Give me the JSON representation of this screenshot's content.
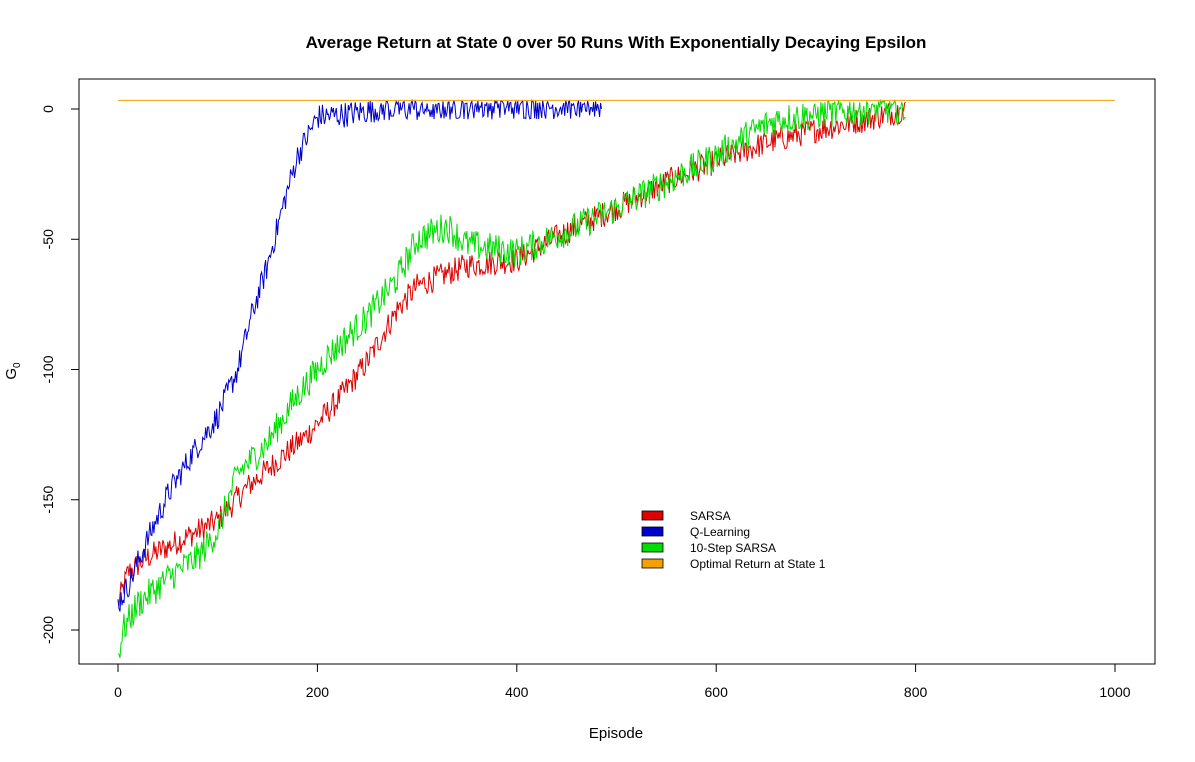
{
  "chart_data": {
    "type": "line",
    "title": "Average Return at State 0 over 50 Runs With Exponentially Decaying Epsilon",
    "xlabel": "Episode",
    "ylabel": "G",
    "ylabel_subscript": "0",
    "xlim": [
      0,
      1000
    ],
    "ylim": [
      -212,
      3
    ],
    "x_ticks": [
      0,
      200,
      400,
      600,
      800,
      1000
    ],
    "x_tick_labels": [
      "0",
      "200",
      "400",
      "600",
      "800",
      "1000"
    ],
    "y_ticks": [
      0,
      -50,
      -100,
      -150,
      -200
    ],
    "y_tick_labels": [
      "0",
      "-50",
      "-100",
      "-150",
      "-200"
    ],
    "grid": false,
    "legend_placement": "bottom-center",
    "series": [
      {
        "name": "SARSA",
        "color": "#dd0000",
        "noise": 5,
        "x": [
          0,
          10,
          30,
          60,
          100,
          130,
          160,
          190,
          220,
          250,
          280,
          300,
          350,
          400,
          450,
          500,
          550,
          600,
          650,
          700,
          750,
          790
        ],
        "values": [
          -190,
          -178,
          -172,
          -166,
          -158,
          -145,
          -135,
          -125,
          -112,
          -97,
          -77,
          -68,
          -60,
          -58,
          -47,
          -38,
          -28,
          -20,
          -13,
          -8,
          -4,
          0
        ]
      },
      {
        "name": "Q-Learning",
        "color": "#0000cc",
        "noise": 5,
        "x": [
          0,
          10,
          30,
          50,
          75,
          100,
          120,
          135,
          150,
          165,
          180,
          200,
          230,
          260,
          300,
          350,
          400,
          450,
          485
        ],
        "values": [
          -190,
          -183,
          -165,
          -148,
          -132,
          -118,
          -100,
          -78,
          -60,
          -38,
          -18,
          -3,
          -2,
          0,
          0,
          1,
          1,
          1,
          1
        ]
      },
      {
        "name": "10-Step SARSA",
        "color": "#00dd00",
        "noise": 6,
        "x": [
          0,
          5,
          20,
          50,
          80,
          100,
          120,
          150,
          180,
          210,
          250,
          280,
          300,
          330,
          350,
          400,
          450,
          500,
          550,
          600,
          640,
          660,
          700,
          750,
          790
        ],
        "values": [
          -210,
          -200,
          -190,
          -180,
          -172,
          -162,
          -140,
          -128,
          -110,
          -95,
          -80,
          -65,
          -50,
          -45,
          -52,
          -55,
          -47,
          -38,
          -28,
          -18,
          -8,
          -4,
          -2,
          0,
          0
        ]
      },
      {
        "name": "Optimal Return at State 1",
        "color": "#f5a000",
        "noise": 0,
        "x": [
          0,
          1000
        ],
        "values": [
          3.3,
          3.3
        ]
      }
    ]
  }
}
